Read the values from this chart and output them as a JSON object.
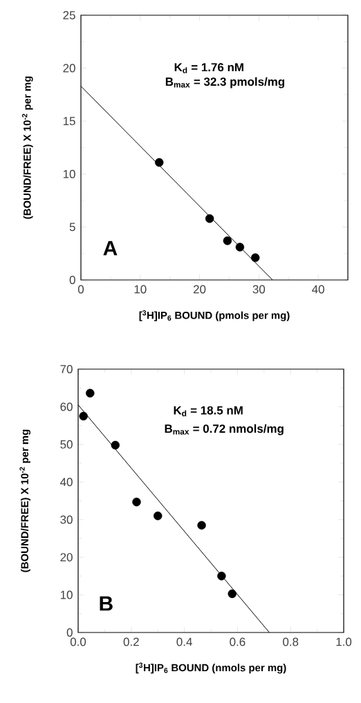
{
  "chart_data": [
    {
      "type": "scatter",
      "xlabel": "[$^{3}$H]IP$_{6}$ BOUND (pmols per mg)",
      "ylabel": "(BOUND/FREE) X 10$^{-2}$ per mg",
      "xlim": [
        0,
        45
      ],
      "ylim": [
        0,
        25
      ],
      "xticks": [
        0,
        10,
        20,
        30,
        40
      ],
      "yticks": [
        0,
        5,
        10,
        15,
        20,
        25
      ],
      "series": [
        {
          "color": "#000000",
          "marker": "circle",
          "x": [
            13.2,
            21.7,
            24.7,
            26.8,
            29.4
          ],
          "values": [
            11.1,
            5.8,
            3.7,
            3.1,
            2.1
          ]
        },
        {
          "type": "line",
          "color": "#000000",
          "marker": "none",
          "x": [
            0,
            32.3
          ],
          "values": [
            18.3,
            0
          ]
        }
      ],
      "annotations": [
        "K$_{d}$ = 1.76 nM",
        "B$_{max}$ = 32.3 pmols/mg",
        "A"
      ]
    },
    {
      "type": "scatter",
      "xlabel": "[$^{3}$H]IP$_{6}$ BOUND (nmols per mg)",
      "ylabel": "(BOUND/FREE) X 10$^{-2}$ per mg",
      "xlim": [
        0,
        1.0
      ],
      "ylim": [
        0,
        70
      ],
      "xticks": [
        {
          "value": 0,
          "label": "0.0"
        },
        0.2,
        0.4,
        0.6,
        0.8,
        {
          "value": 1.0,
          "label": "1.0"
        }
      ],
      "yticks": [
        0,
        10,
        20,
        30,
        40,
        50,
        60,
        70
      ],
      "series": [
        {
          "color": "#000000",
          "marker": "circle",
          "x": [
            0.02,
            0.045,
            0.14,
            0.22,
            0.3,
            0.465,
            0.54,
            0.58
          ],
          "values": [
            57.5,
            63.6,
            49.8,
            34.7,
            31.0,
            28.5,
            15.0,
            10.3
          ]
        },
        {
          "type": "line",
          "color": "#000000",
          "marker": "none",
          "x": [
            0,
            0.72
          ],
          "values": [
            60.5,
            0
          ]
        }
      ],
      "annotations": [
        "K$_{d}$ = 18.5 nM",
        "B$_{max}$ = 0.72 nmols/mg",
        "B"
      ]
    }
  ]
}
